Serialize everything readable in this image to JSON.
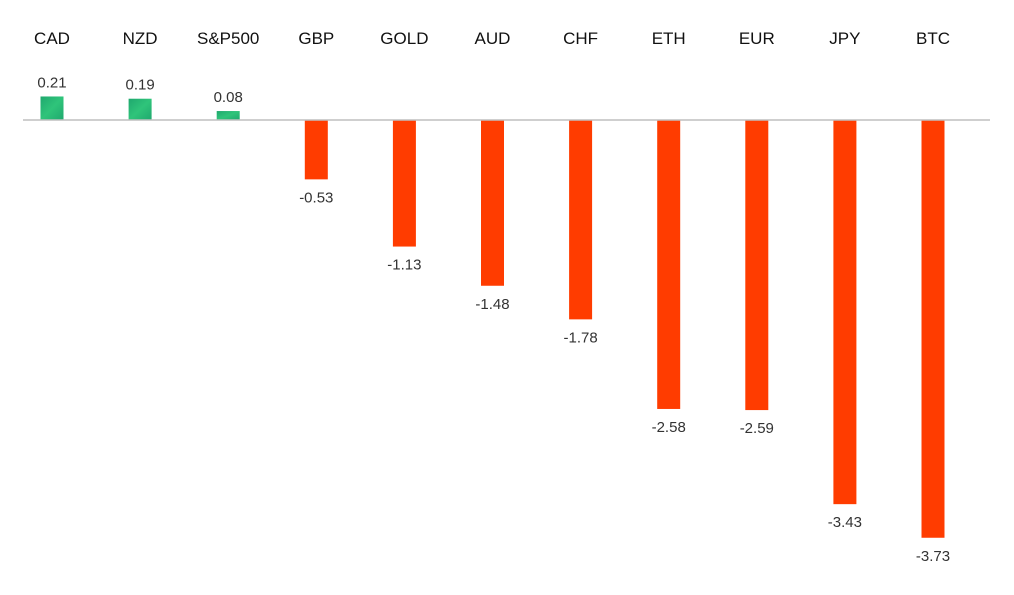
{
  "chart_data": {
    "type": "bar",
    "categories": [
      "CAD",
      "NZD",
      "S&P500",
      "GBP",
      "GOLD",
      "AUD",
      "CHF",
      "ETH",
      "EUR",
      "JPY",
      "BTC"
    ],
    "values": [
      0.21,
      0.19,
      0.08,
      -0.53,
      -1.13,
      -1.48,
      -1.78,
      -2.58,
      -2.59,
      -3.43,
      -3.73
    ],
    "value_labels": [
      "0.21",
      "0.19",
      "0.08",
      "-0.53",
      "-1.13",
      "-1.48",
      "-1.78",
      "-2.58",
      "-2.59",
      "-3.43",
      "-3.73"
    ],
    "title": "",
    "xlabel": "",
    "ylabel": "",
    "category_axis_position": "top",
    "grid": false,
    "legend": "none",
    "colors": {
      "positive": "#1fa86e",
      "positive_light": "#2fc47a",
      "negative": "#ff3c00",
      "axis": "#bfbfbf"
    }
  }
}
